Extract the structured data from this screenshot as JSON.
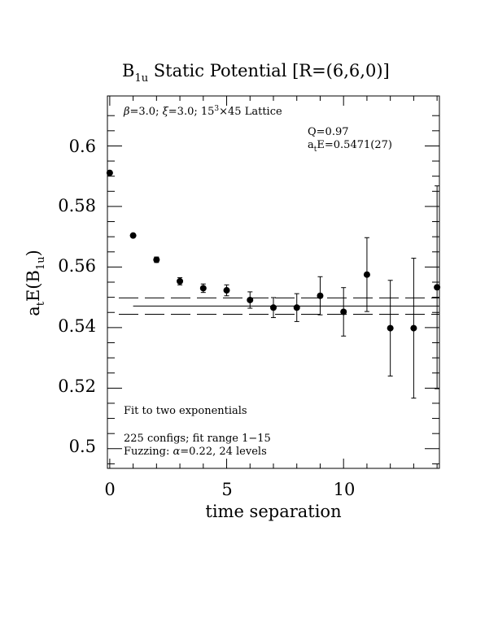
{
  "chart_data": {
    "type": "scatter",
    "title": {
      "main": "B",
      "sub": "1u",
      "rest": " Static Potential [R=(6,6,0)]"
    },
    "xlabel": "time separation",
    "ylabel": {
      "main": "a",
      "sub1": "t",
      "mid": "E(B",
      "sub2": "1u",
      "end": ")"
    },
    "xlim": [
      -0.1,
      14.1
    ],
    "ylim": [
      0.4935,
      0.6165
    ],
    "xticks": [
      0,
      5,
      10
    ],
    "xtick_labels": [
      "0",
      "5",
      "10"
    ],
    "yticks": [
      0.5,
      0.52,
      0.54,
      0.56,
      0.58,
      0.6
    ],
    "ytick_labels": [
      "0.5",
      "0.52",
      "0.54",
      "0.56",
      "0.58",
      "0.6"
    ],
    "grid": false,
    "points": [
      {
        "x": 0,
        "y": 0.5911,
        "err": 0.0005
      },
      {
        "x": 1,
        "y": 0.5704,
        "err": 0.0007
      },
      {
        "x": 2,
        "y": 0.5624,
        "err": 0.0009
      },
      {
        "x": 3,
        "y": 0.5553,
        "err": 0.0012
      },
      {
        "x": 4,
        "y": 0.553,
        "err": 0.0014
      },
      {
        "x": 5,
        "y": 0.5523,
        "err": 0.0018
      },
      {
        "x": 6,
        "y": 0.5491,
        "err": 0.0027
      },
      {
        "x": 7,
        "y": 0.5466,
        "err": 0.0033
      },
      {
        "x": 8,
        "y": 0.5466,
        "err": 0.0046
      },
      {
        "x": 9,
        "y": 0.5505,
        "err": 0.0063
      },
      {
        "x": 10,
        "y": 0.5452,
        "err": 0.008
      },
      {
        "x": 11,
        "y": 0.5575,
        "err": 0.0122
      },
      {
        "x": 12,
        "y": 0.5398,
        "err": 0.0158
      },
      {
        "x": 13,
        "y": 0.5398,
        "err": 0.0231
      },
      {
        "x": 14,
        "y": 0.5533,
        "err": 0.0335
      }
    ],
    "fit": {
      "value": 0.5471,
      "err": 0.0027,
      "x_range": [
        1,
        14
      ]
    },
    "annotations": {
      "lattice": {
        "beta": "β",
        "beta_text": "=3.0; ",
        "xi": "ξ",
        "xi_text": "=3.0; 15",
        "sup": "3",
        "rest": "×45 Lattice"
      },
      "q": "Q=0.97",
      "energy": {
        "main": "a",
        "sub": "t",
        "rest": "E=0.5471(27)"
      },
      "fit_desc": "Fit to two exponentials",
      "configs": "225 configs; fit range 1−15",
      "fuzzing": {
        "pre": "Fuzzing: ",
        "alpha": "α",
        "rest": "=0.22, 24 levels"
      }
    }
  }
}
